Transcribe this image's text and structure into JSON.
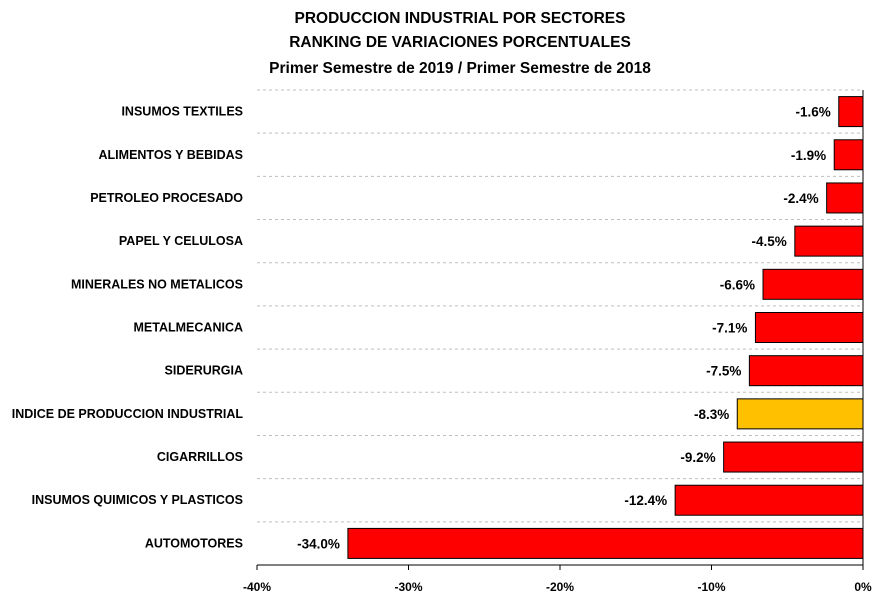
{
  "chart_data": {
    "type": "bar",
    "orientation": "horizontal",
    "title": [
      "PRODUCCION INDUSTRIAL POR SECTORES",
      "RANKING DE VARIACIONES PORCENTUALES",
      "Primer Semestre de 2019 / Primer Semestre de 2018"
    ],
    "categories": [
      "INSUMOS TEXTILES",
      "ALIMENTOS Y BEBIDAS",
      "PETROLEO PROCESADO",
      "PAPEL Y CELULOSA",
      "MINERALES NO METALICOS",
      "METALMECANICA",
      "SIDERURGIA",
      "INDICE DE PRODUCCION INDUSTRIAL",
      "CIGARRILLOS",
      "INSUMOS QUIMICOS Y PLASTICOS",
      "AUTOMOTORES"
    ],
    "values": [
      -1.6,
      -1.9,
      -2.4,
      -4.5,
      -6.6,
      -7.1,
      -7.5,
      -8.3,
      -9.2,
      -12.4,
      -34.0
    ],
    "value_labels": [
      "-1.6%",
      "-1.9%",
      "-2.4%",
      "-4.5%",
      "-6.6%",
      "-7.1%",
      "-7.5%",
      "-8.3%",
      "-9.2%",
      "-12.4%",
      "-34.0%"
    ],
    "highlight_index": 7,
    "xlim": [
      -40,
      0
    ],
    "xticks": [
      -40,
      -30,
      -20,
      -10,
      0
    ],
    "xtick_labels": [
      "-40%",
      "-30%",
      "-20%",
      "-10%",
      "0%"
    ],
    "grid": "horizontal dashed",
    "colors": {
      "bar": "#ff0000",
      "highlight": "#ffc000",
      "stroke": "#000000",
      "grid": "#bfbfbf"
    }
  }
}
